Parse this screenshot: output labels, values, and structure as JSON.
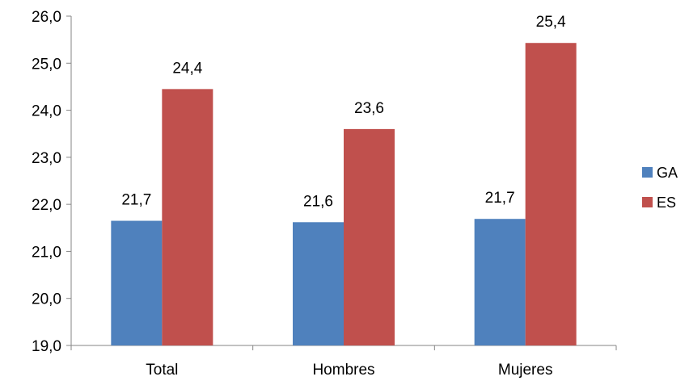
{
  "chart_data": {
    "type": "bar",
    "categories": [
      "Total",
      "Hombres",
      "Mujeres"
    ],
    "series": [
      {
        "name": "GA",
        "color": "#4F81BD",
        "values": [
          21.65,
          21.62,
          21.69
        ],
        "labels": [
          "21,7",
          "21,6",
          "21,7"
        ]
      },
      {
        "name": "ES",
        "color": "#C0504D",
        "values": [
          24.45,
          23.6,
          25.43
        ],
        "labels": [
          "24,4",
          "23,6",
          "25,4"
        ]
      }
    ],
    "ylim": [
      19.0,
      26.0
    ],
    "yticks": [
      19.0,
      20.0,
      21.0,
      22.0,
      23.0,
      24.0,
      25.0,
      26.0
    ],
    "ytick_labels": [
      "19,0",
      "20,0",
      "21,0",
      "22,0",
      "23,0",
      "24,0",
      "25,0",
      "26,0"
    ],
    "title": "",
    "xlabel": "",
    "ylabel": "",
    "grid": false,
    "legend_position": "right"
  }
}
